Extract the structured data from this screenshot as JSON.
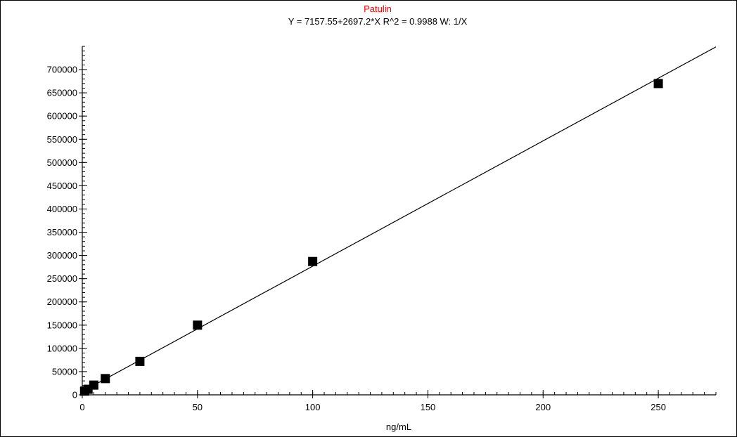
{
  "chart_data": {
    "type": "scatter",
    "title": "Patulin",
    "subtitle": "Y = 7157.55+2697.2*X   R^2 = 0.9988   W: 1/X",
    "xlabel": "ng/mL",
    "ylabel": "",
    "xlim": [
      0,
      275
    ],
    "ylim": [
      0,
      750000
    ],
    "xticks": [
      0,
      50,
      100,
      150,
      200,
      250
    ],
    "xtick_labels": [
      "0",
      "50",
      "100",
      "150",
      "200",
      "250"
    ],
    "yticks": [
      0,
      50000,
      100000,
      150000,
      200000,
      250000,
      300000,
      350000,
      400000,
      450000,
      500000,
      550000,
      600000,
      650000,
      700000
    ],
    "ytick_labels": [
      "0",
      "50000",
      "100000",
      "150000",
      "200000",
      "250000",
      "300000",
      "350000",
      "400000",
      "450000",
      "500000",
      "550000",
      "600000",
      "650000",
      "700000"
    ],
    "grid": false,
    "series": [
      {
        "marker": "square",
        "x": [
          1,
          2.5,
          5,
          10,
          25,
          50,
          100,
          250
        ],
        "y": [
          8000,
          12000,
          21000,
          35000,
          72000,
          150000,
          287000,
          670000
        ]
      }
    ],
    "fit_line": {
      "intercept": 7157.55,
      "slope": 2697.2
    },
    "colors": {
      "title": "#ff0000",
      "text": "#000000",
      "marks": "#000000",
      "background": "#ffffff"
    }
  }
}
